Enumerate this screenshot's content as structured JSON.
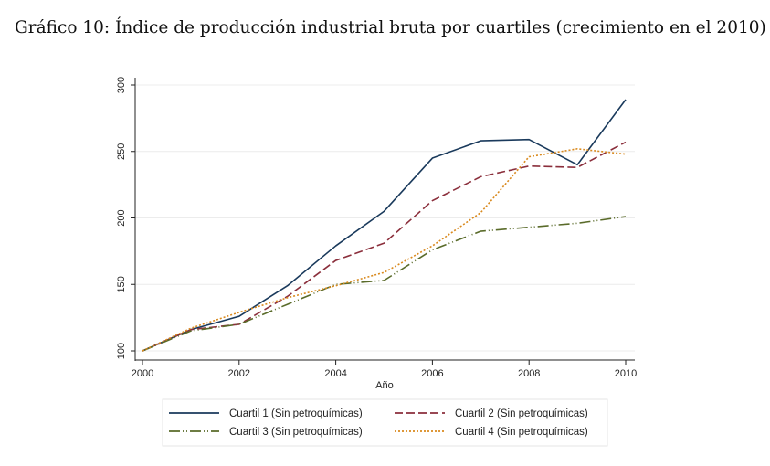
{
  "title": "Gráfico 10: Índice de producción industrial bruta por cuartiles (crecimiento en el 2010)",
  "chart_data": {
    "type": "line",
    "title": "Gráfico 10: Índice de producción industrial bruta por cuartiles (crecimiento en el 2010)",
    "xlabel": "Año",
    "ylabel": "",
    "x": [
      2000,
      2001,
      2002,
      2003,
      2004,
      2005,
      2006,
      2007,
      2008,
      2009,
      2010
    ],
    "xlim": [
      2000,
      2010
    ],
    "ylim": [
      100,
      300
    ],
    "xticks": [
      "2000",
      "2002",
      "2004",
      "2006",
      "2008",
      "2010"
    ],
    "yticks": [
      "100",
      "150",
      "200",
      "250",
      "300"
    ],
    "grid": true,
    "legend_position": "bottom",
    "series": [
      {
        "name": "Cuartil 1 (Sin petroquímicas)",
        "color": "#1a3a5c",
        "style": "solid",
        "values": [
          100,
          116,
          126,
          149,
          179,
          205,
          245,
          258,
          259,
          240,
          289
        ]
      },
      {
        "name": "Cuartil 2 (Sin petroquímicas)",
        "color": "#8b2f3c",
        "style": "dashed",
        "values": [
          100,
          116,
          120,
          141,
          168,
          181,
          213,
          231,
          239,
          238,
          257
        ]
      },
      {
        "name": "Cuartil 3 (Sin petroquímicas)",
        "color": "#5a6b2a",
        "style": "dash-dot-dot",
        "values": [
          100,
          115,
          120,
          135,
          150,
          153,
          176,
          190,
          193,
          196,
          201
        ]
      },
      {
        "name": "Cuartil 4 (Sin petroquímicas)",
        "color": "#d98a1f",
        "style": "dotted",
        "values": [
          100,
          117,
          129,
          140,
          149,
          159,
          179,
          204,
          246,
          252,
          248
        ]
      }
    ]
  }
}
